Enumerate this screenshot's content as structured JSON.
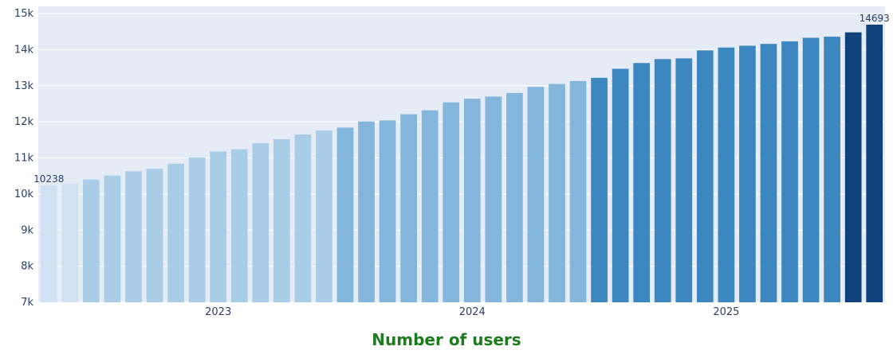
{
  "chart_data": {
    "type": "bar",
    "title": "",
    "xlabel": "",
    "ylabel": "",
    "ylim": [
      7000,
      15200
    ],
    "y_ticks": [
      {
        "value": 7000,
        "label": "7k"
      },
      {
        "value": 8000,
        "label": "8k"
      },
      {
        "value": 9000,
        "label": "9k"
      },
      {
        "value": 10000,
        "label": "10k"
      },
      {
        "value": 11000,
        "label": "11k"
      },
      {
        "value": 12000,
        "label": "12k"
      },
      {
        "value": 13000,
        "label": "13k"
      },
      {
        "value": 14000,
        "label": "14k"
      },
      {
        "value": 15000,
        "label": "15k"
      }
    ],
    "x_ticks": [
      {
        "index": 8.5,
        "label": "2023"
      },
      {
        "index": 20.5,
        "label": "2024"
      },
      {
        "index": 32.5,
        "label": "2025"
      }
    ],
    "values": [
      10238,
      10290,
      10400,
      10510,
      10630,
      10700,
      10840,
      11010,
      11180,
      11240,
      11410,
      11520,
      11650,
      11760,
      11840,
      12010,
      12040,
      12210,
      12320,
      12540,
      12640,
      12700,
      12800,
      12970,
      13050,
      13130,
      13220,
      13470,
      13630,
      13740,
      13760,
      13980,
      14060,
      14110,
      14160,
      14230,
      14330,
      14360,
      14480,
      14693
    ],
    "bar_colors": [
      "#cfe1f2",
      "#cfe1f2",
      "#a9cde7",
      "#a9cde7",
      "#a9cde7",
      "#a9cde7",
      "#a9cde7",
      "#a9cde7",
      "#a9cde7",
      "#a9cde7",
      "#a9cde7",
      "#a9cde7",
      "#a9cde7",
      "#a9cde7",
      "#84b5da",
      "#84b5da",
      "#84b5da",
      "#84b5da",
      "#84b5da",
      "#84b5da",
      "#84b5da",
      "#84b5da",
      "#84b5da",
      "#84b5da",
      "#84b5da",
      "#84b5da",
      "#3d87c0",
      "#3d87c0",
      "#3d87c0",
      "#3d87c0",
      "#3d87c0",
      "#3d87c0",
      "#3d87c0",
      "#3d87c0",
      "#3d87c0",
      "#3d87c0",
      "#3d87c0",
      "#3d87c0",
      "#0f427c",
      "#0f427c"
    ],
    "data_labels": [
      {
        "index": 0,
        "text": "10238"
      },
      {
        "index": 39,
        "text": "14693"
      }
    ],
    "caption": "Number of users",
    "colors": {
      "plot_background": "#e5ecf6",
      "grid": "#ffffff",
      "tick_text": "#2a3f5f",
      "caption": "#1e7a1e"
    },
    "grid": true,
    "legend": "none"
  }
}
